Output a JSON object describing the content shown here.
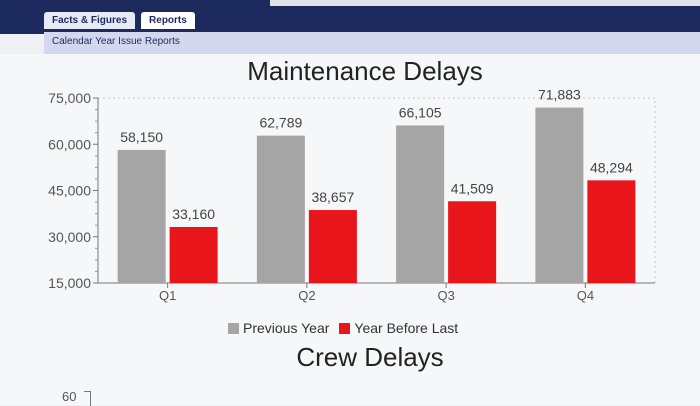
{
  "nav": {
    "tabs": [
      {
        "label": "Facts & Figures"
      },
      {
        "label": "Reports"
      }
    ],
    "subtab": "Calendar Year Issue Reports"
  },
  "colors": {
    "previous": "#a5a5a5",
    "before_last": "#e8151b"
  },
  "chart_data": [
    {
      "type": "bar",
      "title": "Maintenance Delays",
      "categories": [
        "Q1",
        "Q2",
        "Q3",
        "Q4"
      ],
      "series": [
        {
          "name": "Previous Year",
          "values": [
            58150,
            62789,
            66105,
            71883
          ]
        },
        {
          "name": "Year Before Last",
          "values": [
            33160,
            38657,
            41509,
            48294
          ]
        }
      ],
      "data_labels": {
        "previous": [
          "58,150",
          "62,789",
          "66,105",
          "71,883"
        ],
        "before_last": [
          "33,160",
          "38,657",
          "41,509",
          "48,294"
        ]
      },
      "ylim": [
        15000,
        75000
      ],
      "yticks": [
        15000,
        30000,
        45000,
        60000,
        75000
      ],
      "ytick_labels": [
        "15,000",
        "30,000",
        "45,000",
        "60,000",
        "75,000"
      ],
      "xlabel": "",
      "ylabel": "",
      "legend": "bottom",
      "grid": false
    },
    {
      "type": "bar",
      "title": "Crew Delays",
      "ytick_labels": [
        "60"
      ]
    }
  ]
}
